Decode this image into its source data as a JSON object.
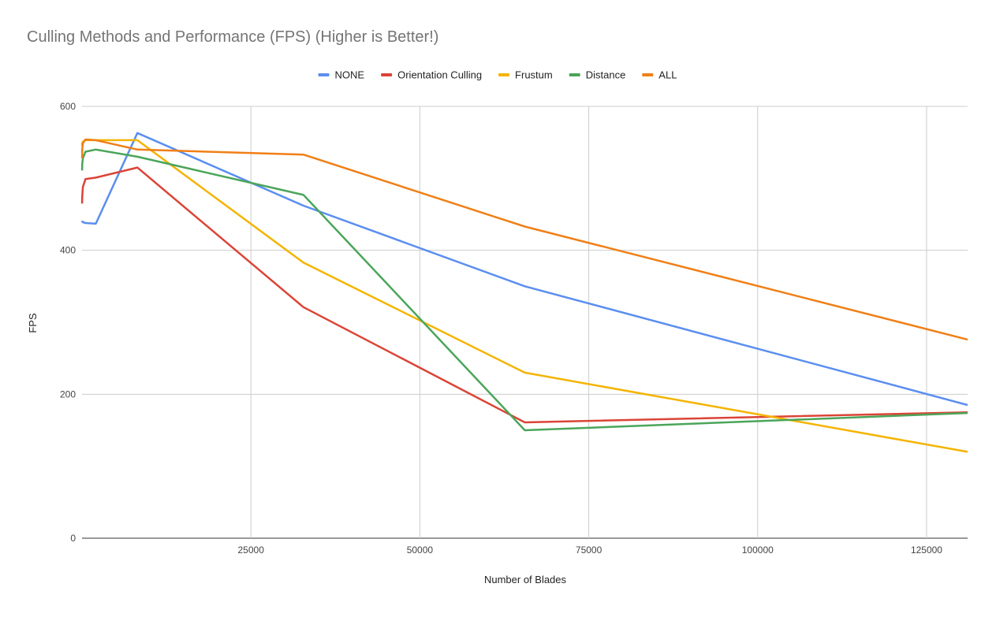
{
  "chart_data": {
    "type": "line",
    "title": "Culling Methods and Performance (FPS) (Higher is Better!)",
    "xlabel": "Number of Blades",
    "ylabel": "FPS",
    "xlim": [
      0,
      131072
    ],
    "ylim": [
      0,
      600
    ],
    "xticks": [
      25000,
      50000,
      75000,
      100000,
      125000
    ],
    "yticks": [
      0,
      200,
      400,
      600
    ],
    "grid": true,
    "legend_position": "top",
    "x": [
      8,
      32,
      128,
      512,
      2048,
      8192,
      32768,
      65536,
      131072
    ],
    "series": [
      {
        "name": "NONE",
        "color": "#5b8ef0",
        "values": [
          441,
          440,
          439,
          438,
          437,
          563,
          462,
          350,
          185
        ]
      },
      {
        "name": "Orientation Culling",
        "color": "#db4437",
        "values": [
          465,
          475,
          488,
          499,
          501,
          515,
          321,
          161,
          175
        ]
      },
      {
        "name": "Frustum",
        "color": "#f4b400",
        "values": [
          545,
          549,
          551,
          553,
          553,
          553,
          383,
          230,
          120
        ]
      },
      {
        "name": "Distance",
        "color": "#4ba55a",
        "values": [
          511,
          520,
          528,
          537,
          540,
          530,
          477,
          150,
          174
        ]
      },
      {
        "name": "ALL",
        "color": "#f07f16",
        "values": [
          528,
          540,
          549,
          554,
          553,
          540,
          533,
          433,
          276
        ]
      }
    ]
  }
}
